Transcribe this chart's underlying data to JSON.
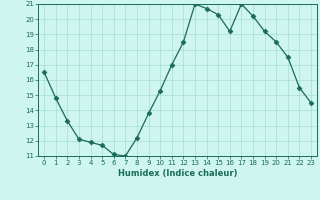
{
  "x": [
    0,
    1,
    2,
    3,
    4,
    5,
    6,
    7,
    8,
    9,
    10,
    11,
    12,
    13,
    14,
    15,
    16,
    17,
    18,
    19,
    20,
    21,
    22,
    23
  ],
  "y": [
    16.5,
    14.8,
    13.3,
    12.1,
    11.9,
    11.7,
    11.1,
    11.0,
    12.2,
    13.8,
    15.3,
    17.0,
    18.5,
    21.0,
    20.7,
    20.3,
    19.2,
    21.0,
    20.2,
    19.2,
    18.5,
    17.5,
    15.5,
    14.5
  ],
  "xlabel": "Humidex (Indice chaleur)",
  "ylim": [
    11,
    21
  ],
  "xlim": [
    -0.5,
    23.5
  ],
  "yticks": [
    11,
    12,
    13,
    14,
    15,
    16,
    17,
    18,
    19,
    20,
    21
  ],
  "xtick_labels": [
    "0",
    "1",
    "2",
    "3",
    "4",
    "5",
    "6",
    "7",
    "8",
    "9",
    "10",
    "11",
    "12",
    "13",
    "14",
    "15",
    "16",
    "17",
    "18",
    "19",
    "20",
    "21",
    "22",
    "23"
  ],
  "line_color": "#1a6b5a",
  "marker": "D",
  "marker_size": 2.5,
  "bg_color": "#cef5ee",
  "grid_color": "#a8ddd4",
  "font_color": "#1a6b5a"
}
